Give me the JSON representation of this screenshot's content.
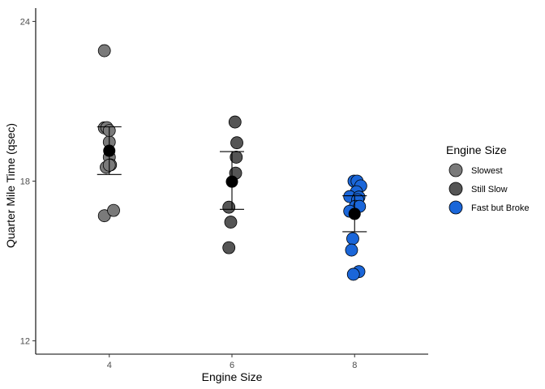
{
  "chart_data": {
    "type": "scatter",
    "xlabel": "Engine Size",
    "ylabel": "Quarter Mile Time (qsec)",
    "x_ticks": [
      "4",
      "6",
      "8"
    ],
    "y_ticks": [
      "12",
      "18",
      "24"
    ],
    "xlim": [
      2.8,
      9.2
    ],
    "ylim": [
      11.5,
      24.5
    ],
    "grid": false,
    "legend": {
      "title": "Engine Size",
      "position": "right",
      "entries": [
        {
          "label": "Slowest",
          "color": "#7a7a7a"
        },
        {
          "label": "Still Slow",
          "color": "#555555"
        },
        {
          "label": "Fast but Broke",
          "color": "#1a66d9"
        }
      ]
    },
    "series": [
      {
        "name": "Slowest",
        "color": "#7a7a7a",
        "points": [
          {
            "x": 3.92,
            "y": 22.9
          },
          {
            "x": 3.92,
            "y": 20.0
          },
          {
            "x": 3.96,
            "y": 20.01
          },
          {
            "x": 4.0,
            "y": 19.47
          },
          {
            "x": 4.0,
            "y": 18.9
          },
          {
            "x": 4.02,
            "y": 18.61
          },
          {
            "x": 3.95,
            "y": 18.52
          },
          {
            "x": 3.92,
            "y": 16.7
          },
          {
            "x": 4.07,
            "y": 16.9
          },
          {
            "x": 4.0,
            "y": 18.6
          },
          {
            "x": 4.0,
            "y": 19.9
          }
        ],
        "mean": 19.14,
        "error_bar": [
          18.25,
          20.04
        ]
      },
      {
        "name": "Still Slow",
        "color": "#555555",
        "points": [
          {
            "x": 6.05,
            "y": 20.22
          },
          {
            "x": 6.08,
            "y": 19.44
          },
          {
            "x": 6.07,
            "y": 18.9
          },
          {
            "x": 6.06,
            "y": 18.3
          },
          {
            "x": 5.95,
            "y": 17.02
          },
          {
            "x": 5.98,
            "y": 16.46
          },
          {
            "x": 5.95,
            "y": 15.5
          }
        ],
        "mean": 17.98,
        "error_bar": [
          16.94,
          19.11
        ]
      },
      {
        "name": "Fast but Broke",
        "color": "#1a66d9",
        "points": [
          {
            "x": 7.99,
            "y": 18.0
          },
          {
            "x": 8.04,
            "y": 18.0
          },
          {
            "x": 8.1,
            "y": 17.82
          },
          {
            "x": 8.03,
            "y": 17.6
          },
          {
            "x": 7.92,
            "y": 17.42
          },
          {
            "x": 8.07,
            "y": 17.4
          },
          {
            "x": 8.05,
            "y": 17.3
          },
          {
            "x": 8.01,
            "y": 17.05
          },
          {
            "x": 8.08,
            "y": 17.05
          },
          {
            "x": 7.92,
            "y": 16.87
          },
          {
            "x": 7.97,
            "y": 15.84
          },
          {
            "x": 7.95,
            "y": 15.41
          },
          {
            "x": 8.07,
            "y": 14.6
          },
          {
            "x": 7.98,
            "y": 14.5
          }
        ],
        "mean": 16.77,
        "error_bar": [
          16.1,
          17.45
        ]
      }
    ]
  }
}
